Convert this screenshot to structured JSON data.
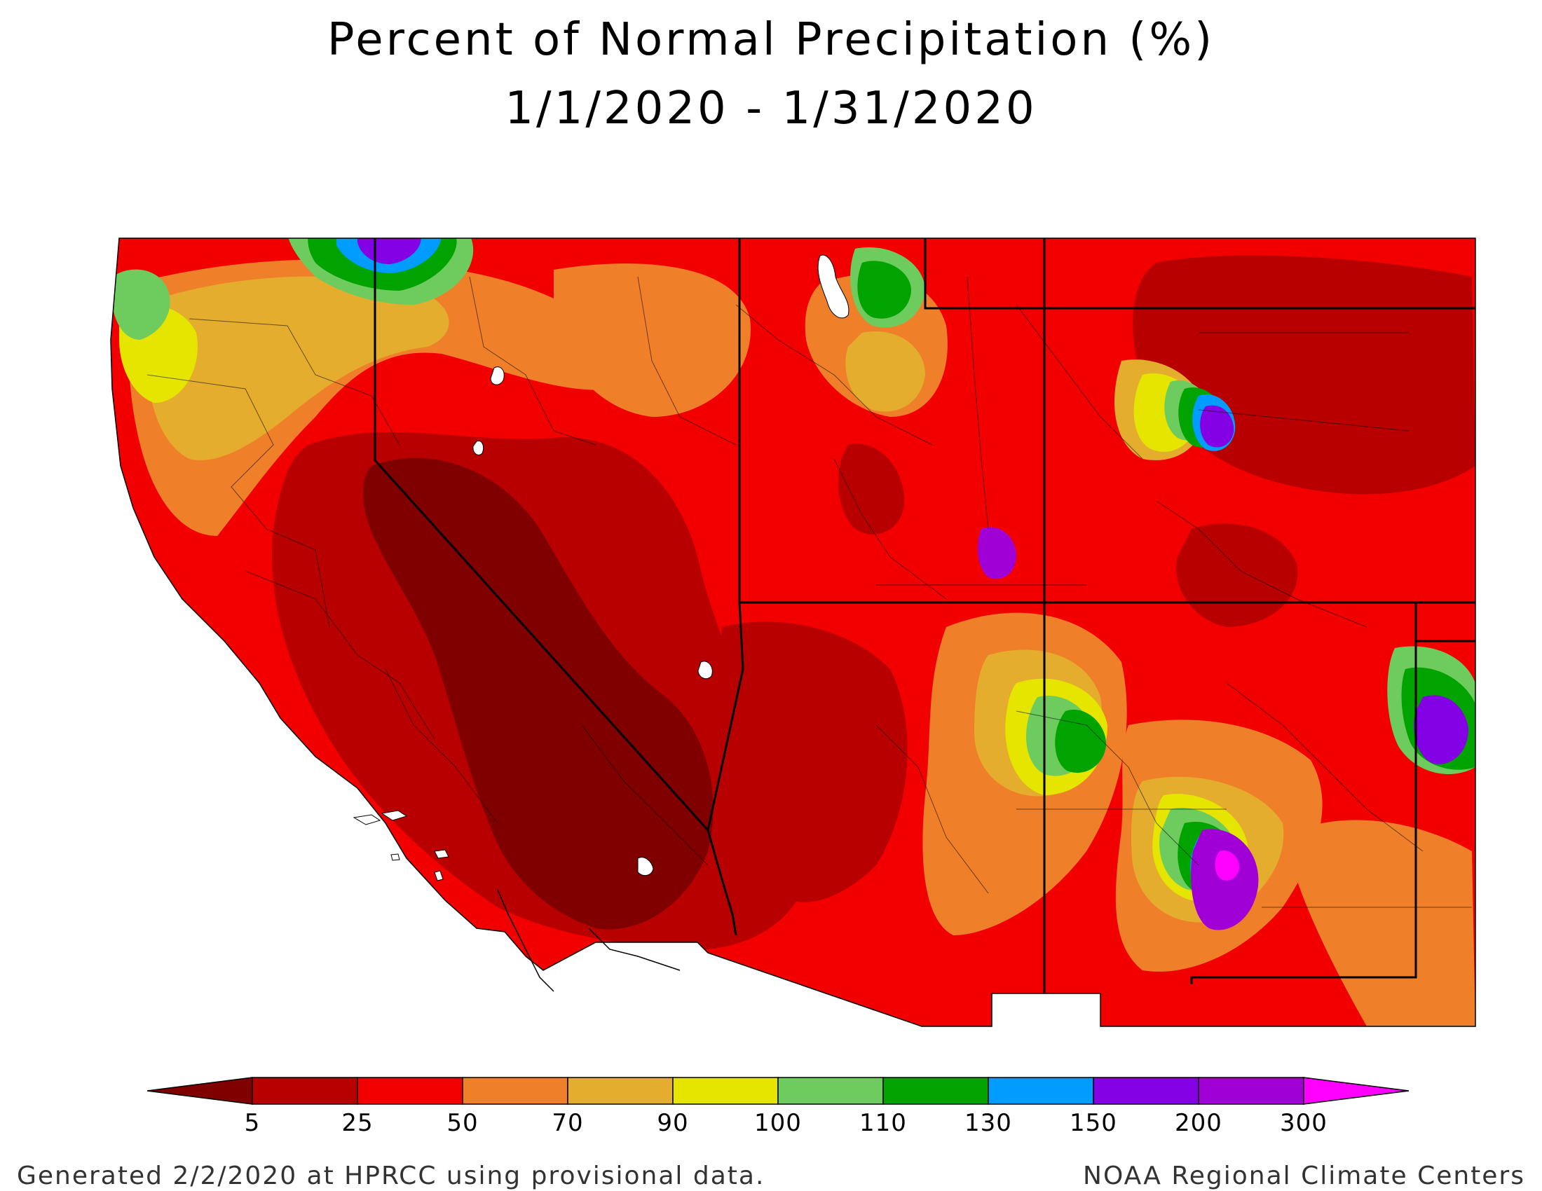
{
  "title": {
    "line1": "Percent of Normal Precipitation (%)",
    "line2": "1/1/2020 - 1/31/2020"
  },
  "legend": {
    "unit": "%",
    "bins": [
      {
        "color": "#800000",
        "range": "<5"
      },
      {
        "color": "#b80000",
        "range": "5-25"
      },
      {
        "color": "#f20000",
        "range": "25-50"
      },
      {
        "color": "#ef8029",
        "range": "50-70"
      },
      {
        "color": "#e5ad2e",
        "range": "70-90"
      },
      {
        "color": "#e5e500",
        "range": "90-100"
      },
      {
        "color": "#6ecb5d",
        "range": "100-110"
      },
      {
        "color": "#00a300",
        "range": "110-130"
      },
      {
        "color": "#009cff",
        "range": "130-150"
      },
      {
        "color": "#8400e5",
        "range": "150-200"
      },
      {
        "color": "#a000d6",
        "range": "200-300"
      },
      {
        "color": "#ff00ff",
        "range": ">300"
      }
    ],
    "labels": [
      "5",
      "25",
      "50",
      "70",
      "90",
      "100",
      "110",
      "130",
      "150",
      "200",
      "300"
    ]
  },
  "footer": {
    "left": "Generated 2/2/2020 at HPRCC using provisional data.",
    "right": "NOAA Regional Climate Centers"
  }
}
